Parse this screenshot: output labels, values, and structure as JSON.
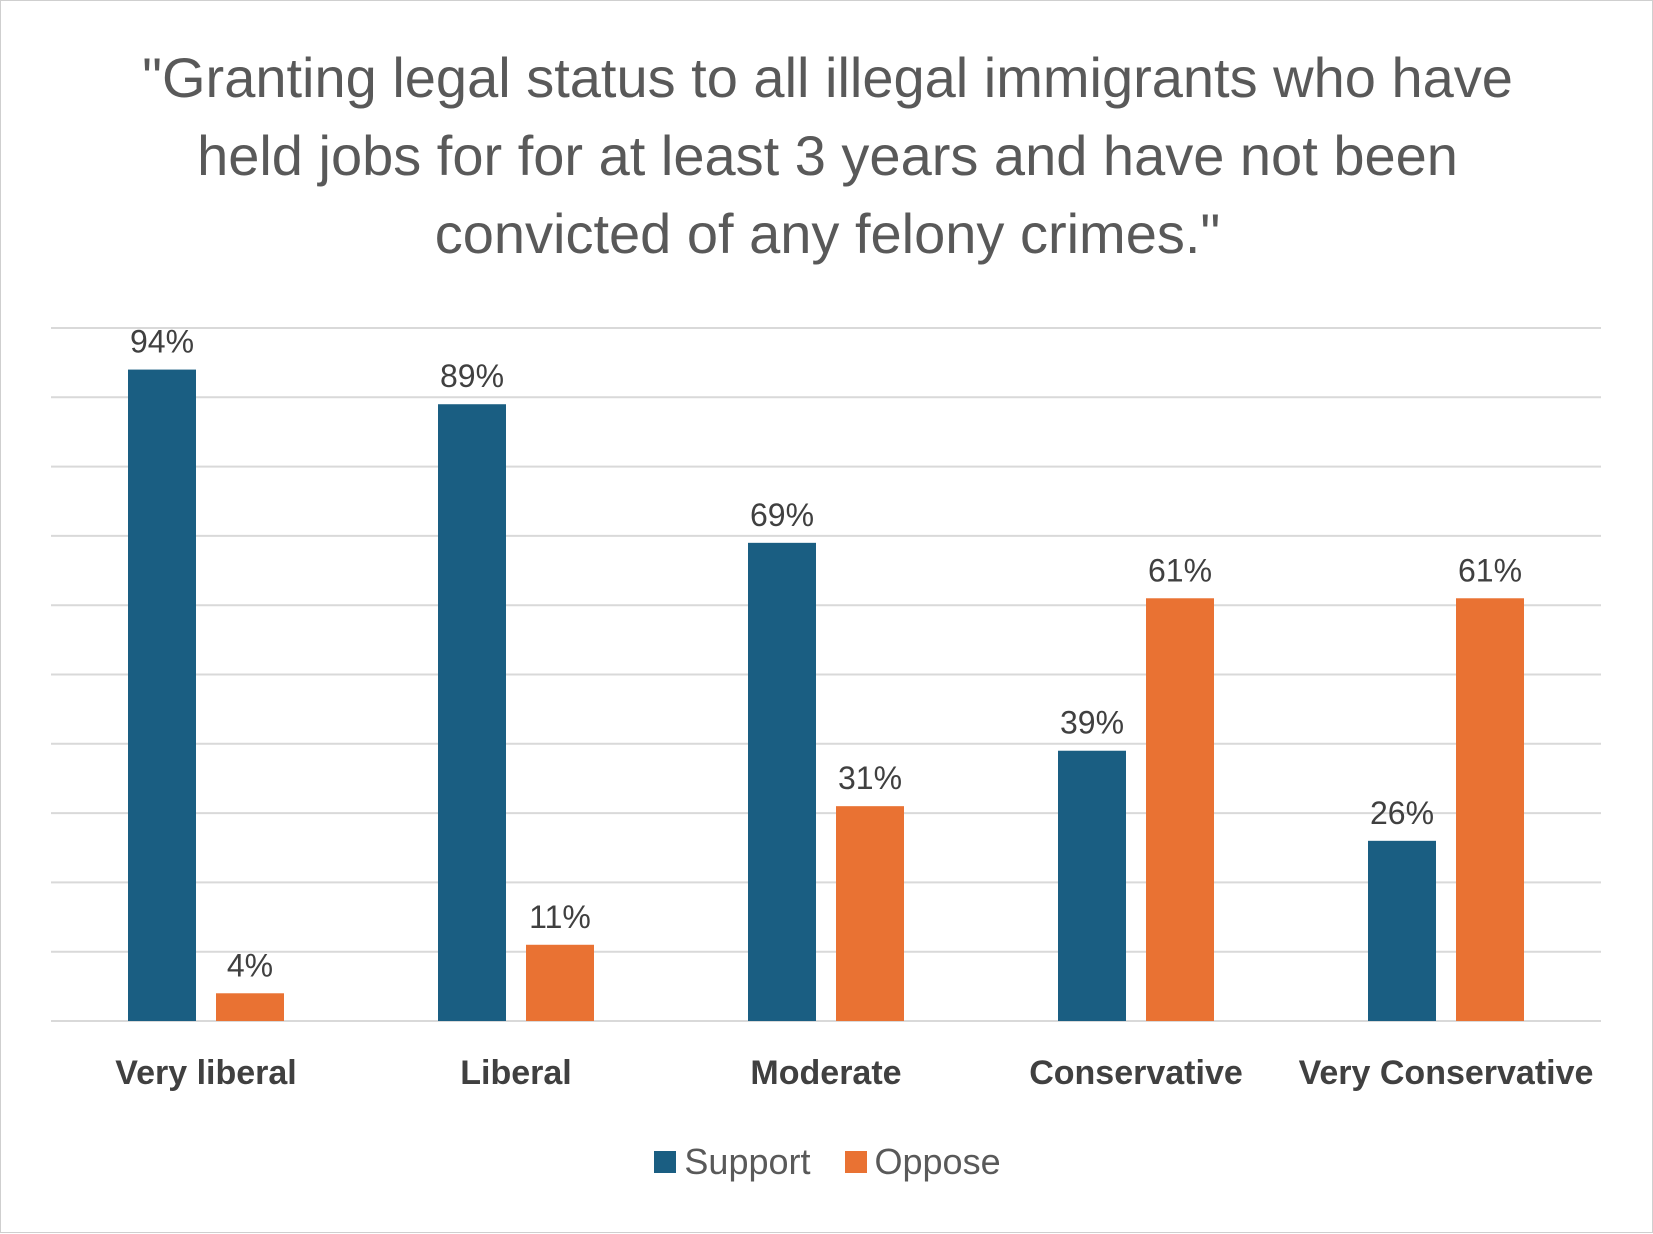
{
  "chart_data": {
    "type": "bar",
    "title": "\"Granting legal status to all illegal immigrants who have held jobs for for at least 3 years and have not been convicted of any felony crimes.\"",
    "categories": [
      "Very liberal",
      "Liberal",
      "Moderate",
      "Conservative",
      "Very Conservative"
    ],
    "series": [
      {
        "name": "Support",
        "color": "#1a5e82",
        "values": [
          94,
          89,
          69,
          39,
          26
        ],
        "labels": [
          "94%",
          "89%",
          "69%",
          "39%",
          "26%"
        ]
      },
      {
        "name": "Oppose",
        "color": "#e97233",
        "values": [
          4,
          11,
          31,
          61,
          61
        ],
        "labels": [
          "4%",
          "11%",
          "31%",
          "61%",
          "61%"
        ]
      }
    ],
    "xlabel": "",
    "ylabel": "",
    "ylim": [
      0,
      100
    ],
    "y_gridline_step": 10,
    "y_tick_labels_shown": false,
    "grid": true,
    "legend": "bottom-center"
  },
  "colors": {
    "gridline": "#d9d9d9",
    "title_text": "#595959",
    "label_text": "#404040"
  }
}
